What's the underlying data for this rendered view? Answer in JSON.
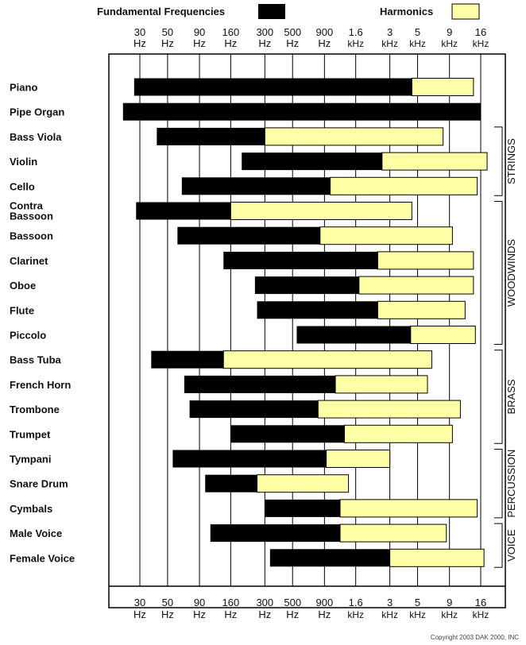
{
  "chart_data": {
    "type": "bar",
    "subtype": "floating-range",
    "orientation": "horizontal",
    "x_scale": "log",
    "legend": [
      {
        "name": "Fundamental Frequencies",
        "color": "#000000"
      },
      {
        "name": "Harmonics",
        "color": "#ffffa8"
      }
    ],
    "ticks": [
      {
        "value": 30,
        "top": "30",
        "bottom": "Hz"
      },
      {
        "value": 50,
        "top": "50",
        "bottom": "Hz"
      },
      {
        "value": 90,
        "top": "90",
        "bottom": "Hz"
      },
      {
        "value": 160,
        "top": "160",
        "bottom": "Hz"
      },
      {
        "value": 300,
        "top": "300",
        "bottom": "Hz"
      },
      {
        "value": 500,
        "top": "500",
        "bottom": "Hz"
      },
      {
        "value": 900,
        "top": "900",
        "bottom": "Hz"
      },
      {
        "value": 1600,
        "top": "1.6",
        "bottom": "kHz"
      },
      {
        "value": 3000,
        "top": "3",
        "bottom": "kHz"
      },
      {
        "value": 5000,
        "top": "5",
        "bottom": "kHz"
      },
      {
        "value": 9000,
        "top": "9",
        "bottom": "kHz"
      },
      {
        "value": 16000,
        "top": "16",
        "bottom": "kHz"
      }
    ],
    "instruments": [
      {
        "name": [
          "Piano"
        ],
        "fundamental": [
          27,
          4500
        ],
        "harmonics": [
          4500,
          14000
        ]
      },
      {
        "name": [
          "Pipe Organ"
        ],
        "fundamental": [
          22,
          16000
        ],
        "harmonics": null
      },
      {
        "name": [
          "Bass Viola"
        ],
        "fundamental": [
          41,
          300
        ],
        "harmonics": [
          300,
          8000
        ]
      },
      {
        "name": [
          "Violin"
        ],
        "fundamental": [
          196,
          2600
        ],
        "harmonics": [
          2600,
          18000
        ]
      },
      {
        "name": [
          "Cello"
        ],
        "fundamental": [
          65,
          1000
        ],
        "harmonics": [
          1000,
          15000
        ]
      },
      {
        "name": [
          "Contra",
          "Bassoon"
        ],
        "fundamental": [
          28,
          160
        ],
        "harmonics": [
          160,
          4500
        ]
      },
      {
        "name": [
          "Bassoon"
        ],
        "fundamental": [
          60,
          830
        ],
        "harmonics": [
          830,
          9500
        ]
      },
      {
        "name": [
          "Clarinet"
        ],
        "fundamental": [
          140,
          2400
        ],
        "harmonics": [
          2400,
          14000
        ]
      },
      {
        "name": [
          "Oboe"
        ],
        "fundamental": [
          250,
          1700
        ],
        "harmonics": [
          1700,
          14000
        ]
      },
      {
        "name": [
          "Flute"
        ],
        "fundamental": [
          260,
          2400
        ],
        "harmonics": [
          2400,
          12000
        ]
      },
      {
        "name": [
          "Piccolo"
        ],
        "fundamental": [
          540,
          4400
        ],
        "harmonics": [
          4400,
          14500
        ]
      },
      {
        "name": [
          "Bass Tuba"
        ],
        "fundamental": [
          37,
          140
        ],
        "harmonics": [
          140,
          6500
        ]
      },
      {
        "name": [
          "French Horn"
        ],
        "fundamental": [
          68,
          1100
        ],
        "harmonics": [
          1100,
          6000
        ]
      },
      {
        "name": [
          "Trombone"
        ],
        "fundamental": [
          75,
          800
        ],
        "harmonics": [
          800,
          11000
        ]
      },
      {
        "name": [
          "Trumpet"
        ],
        "fundamental": [
          160,
          1300
        ],
        "harmonics": [
          1300,
          9500
        ]
      },
      {
        "name": [
          "Tympani"
        ],
        "fundamental": [
          55,
          930
        ],
        "harmonics": [
          930,
          3000
        ]
      },
      {
        "name": [
          "Snare Drum"
        ],
        "fundamental": [
          100,
          260
        ],
        "harmonics": [
          260,
          1400
        ]
      },
      {
        "name": [
          "Cymbals"
        ],
        "fundamental": [
          300,
          1200
        ],
        "harmonics": [
          1200,
          15000
        ]
      },
      {
        "name": [
          "Male Voice"
        ],
        "fundamental": [
          110,
          1200
        ],
        "harmonics": [
          1200,
          8500
        ]
      },
      {
        "name": [
          "Female Voice"
        ],
        "fundamental": [
          330,
          3000
        ],
        "harmonics": [
          3000,
          17000
        ]
      }
    ],
    "groups": [
      {
        "label": "STRINGS",
        "from": 2,
        "to": 4
      },
      {
        "label": "WOODWINDS",
        "from": 5,
        "to": 10
      },
      {
        "label": "BRASS",
        "from": 11,
        "to": 14
      },
      {
        "label": "PERCUSSION",
        "from": 15,
        "to": 17
      },
      {
        "label": "VOICE",
        "from": 18,
        "to": 19
      }
    ],
    "copyright": "Copyright 2003 DAK 2000, INC"
  }
}
